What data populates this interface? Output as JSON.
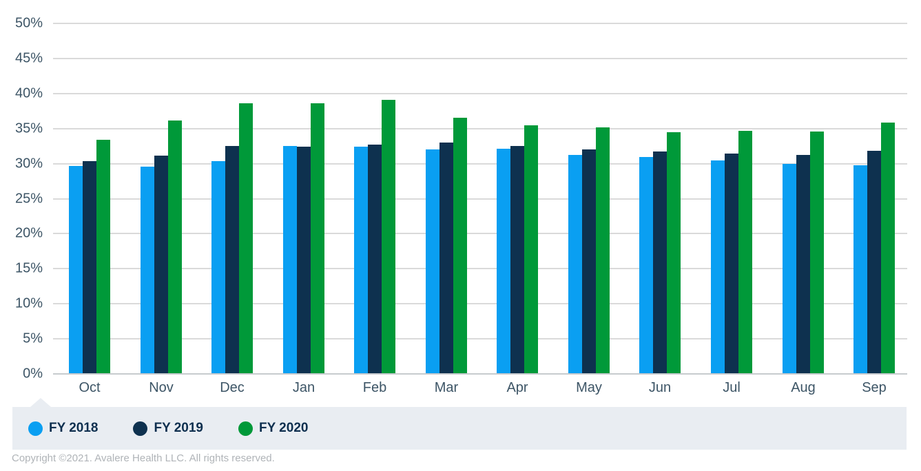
{
  "chart_data": {
    "type": "bar",
    "categories": [
      "Oct",
      "Nov",
      "Dec",
      "Jan",
      "Feb",
      "Mar",
      "Apr",
      "May",
      "Jun",
      "Jul",
      "Aug",
      "Sep"
    ],
    "series": [
      {
        "name": "FY 2018",
        "color": "#0a9ff2",
        "values": [
          29.6,
          29.5,
          30.3,
          32.4,
          32.3,
          31.9,
          32.0,
          31.1,
          30.8,
          30.4,
          29.9,
          29.7
        ]
      },
      {
        "name": "FY 2019",
        "color": "#0e314f",
        "values": [
          30.3,
          31.0,
          32.4,
          32.3,
          32.6,
          32.9,
          32.4,
          31.9,
          31.6,
          31.3,
          31.1,
          31.7
        ]
      },
      {
        "name": "FY 2020",
        "color": "#009939",
        "values": [
          33.3,
          36.1,
          38.5,
          38.5,
          39.0,
          36.4,
          35.4,
          35.1,
          34.4,
          34.6,
          34.5,
          35.8
        ]
      }
    ],
    "title": "",
    "xlabel": "",
    "ylabel": "",
    "ylim": [
      0,
      50
    ],
    "y_tick_step": 5,
    "y_tick_labels": [
      "0%",
      "5%",
      "10%",
      "15%",
      "20%",
      "25%",
      "30%",
      "35%",
      "40%",
      "45%",
      "50%"
    ],
    "grid": true,
    "legend_position": "bottom"
  },
  "legend": {
    "items": [
      {
        "label": "FY 2018",
        "color": "#0a9ff2"
      },
      {
        "label": "FY 2019",
        "color": "#0e314f"
      },
      {
        "label": "FY 2020",
        "color": "#009939"
      }
    ]
  },
  "footer": {
    "copyright": "Copyright ©2021. Avalere Health LLC. All rights reserved."
  },
  "colors": {
    "gridline": "#dadada",
    "axis_line": "#c7cbce",
    "axis_text": "#3d5566",
    "legend_background": "#e9edf2",
    "legend_text": "#0e2f4f",
    "copyright_text": "#b0b4b8"
  }
}
